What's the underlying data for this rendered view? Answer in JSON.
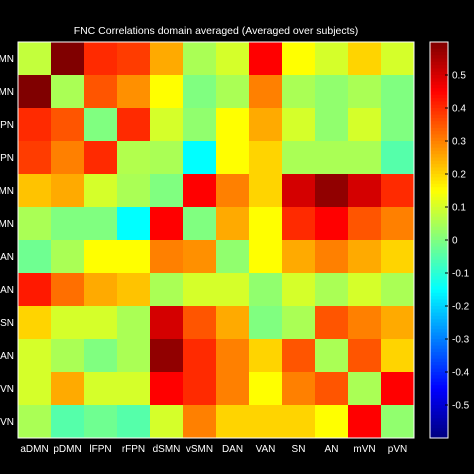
{
  "chart_data": {
    "type": "heatmap",
    "title": "FNC Correlations domain averaged (Averaged over subjects)",
    "x_labels": [
      "aDMN",
      "pDMN",
      "lFPN",
      "rFPN",
      "dSMN",
      "vSMN",
      "DAN",
      "VAN",
      "SN",
      "AN",
      "mVN",
      "pVN"
    ],
    "y_labels": [
      "aDMN",
      "pDMN",
      "lFPN",
      "rFPN",
      "dSMN",
      "vSMN",
      "DAN",
      "VAN",
      "SN",
      "AN",
      "mVN",
      "pVN"
    ],
    "y_labels_visible": [
      "DMN",
      "DMN",
      "FPN",
      "FPN",
      "DMN",
      "DMN",
      "AN",
      "AN",
      "SN",
      "AN",
      "VN",
      "VN"
    ],
    "colorscale": "jet",
    "clim": [
      -0.6,
      0.6
    ],
    "colorbar_ticks": [
      0.5,
      0.4,
      0.3,
      0.2,
      0.1,
      0,
      -0.1,
      -0.2,
      -0.3,
      -0.4,
      -0.5
    ],
    "colorbar_tick_labels": [
      "0.5",
      "0.4",
      "0.3",
      "0.2",
      "0.1",
      "0",
      "-0.1",
      "-0.2",
      "-0.3",
      "-0.4",
      "-0.5"
    ],
    "values": [
      [
        0.08,
        0.6,
        0.4,
        0.38,
        0.25,
        0.05,
        0.1,
        0.45,
        0.15,
        0.1,
        0.2,
        0.1
      ],
      [
        0.6,
        0.05,
        0.35,
        0.28,
        0.15,
        0.0,
        0.05,
        0.3,
        0.05,
        0.02,
        0.05,
        0.0
      ],
      [
        0.4,
        0.35,
        0.0,
        0.4,
        0.1,
        0.02,
        0.15,
        0.25,
        0.1,
        0.02,
        0.1,
        0.0
      ],
      [
        0.38,
        0.3,
        0.4,
        0.06,
        0.05,
        -0.15,
        0.15,
        0.2,
        0.05,
        0.05,
        0.05,
        -0.05
      ],
      [
        0.22,
        0.25,
        0.1,
        0.05,
        0.0,
        0.45,
        0.3,
        0.2,
        0.5,
        0.58,
        0.5,
        0.4
      ],
      [
        0.05,
        0.0,
        0.0,
        -0.15,
        0.45,
        0.0,
        0.25,
        0.15,
        0.4,
        0.45,
        0.35,
        0.3
      ],
      [
        -0.02,
        0.05,
        0.15,
        0.15,
        0.3,
        0.28,
        0.02,
        0.15,
        0.25,
        0.3,
        0.25,
        0.2
      ],
      [
        0.42,
        0.32,
        0.25,
        0.22,
        0.05,
        0.1,
        0.1,
        0.02,
        0.1,
        0.05,
        0.1,
        0.05
      ],
      [
        0.2,
        0.1,
        0.1,
        0.05,
        0.5,
        0.35,
        0.25,
        0.0,
        0.05,
        0.35,
        0.3,
        0.25
      ],
      [
        0.1,
        0.05,
        0.0,
        0.05,
        0.58,
        0.4,
        0.3,
        0.2,
        0.35,
        0.05,
        0.35,
        0.2
      ],
      [
        0.1,
        0.25,
        0.1,
        0.1,
        0.45,
        0.4,
        0.3,
        0.15,
        0.3,
        0.35,
        0.05,
        0.45
      ],
      [
        0.05,
        -0.05,
        -0.02,
        -0.05,
        0.1,
        0.3,
        0.2,
        0.2,
        0.2,
        0.15,
        0.45,
        0.02
      ]
    ]
  }
}
